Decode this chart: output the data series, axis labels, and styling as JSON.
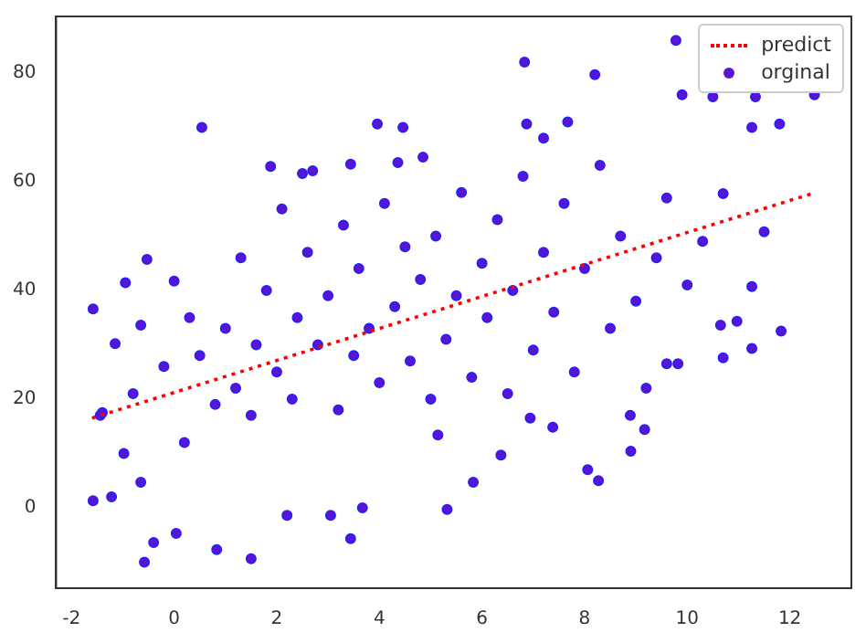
{
  "chart_data": {
    "type": "scatter",
    "xlim": [
      -2.3,
      13.2
    ],
    "ylim": [
      -14.8,
      90.4
    ],
    "xticks": [
      -2,
      0,
      2,
      4,
      6,
      8,
      10,
      12
    ],
    "yticks": [
      0,
      20,
      40,
      60,
      80
    ],
    "grid": false,
    "legend": "top right",
    "series": [
      {
        "name": "predict",
        "type": "line",
        "line_style": "dotted",
        "marker": "none",
        "color": "#ff0000",
        "x": [
          -1.6,
          12.5
        ],
        "values": [
          16.5,
          58
        ]
      },
      {
        "name": "orginal",
        "marker": "circle",
        "color": "#5a14d2",
        "x": [
          0.54,
          3.96,
          4.46,
          4.36,
          4.85,
          -1.58,
          -1.58,
          -1.22,
          -1.44,
          -0.58,
          -0.4,
          0.83,
          1.5,
          3.44,
          0.04,
          2.2,
          3.05,
          3.67,
          1.88,
          2.5,
          2.7,
          3.44,
          -0.53,
          -0.95,
          0,
          -0.98,
          -0.65,
          -1.15,
          -0.65,
          5.32,
          5.83,
          6.83,
          9.78,
          8.2,
          12.48,
          11.8,
          11.26,
          11.33,
          10.5,
          11.26,
          11.26,
          11.83,
          11.5,
          10.97,
          10.7,
          10.65,
          8.9,
          8.06,
          8.27,
          9.17,
          8.89,
          9.82,
          9.6,
          10.7,
          9.9,
          6.87,
          7.2,
          7.67,
          7.38,
          6.37,
          6.94,
          5.14,
          -1.4,
          -0.8,
          -0.2,
          0.2,
          0.3,
          0.5,
          0.8,
          1.0,
          1.2,
          1.3,
          1.5,
          1.6,
          1.8,
          2.0,
          2.1,
          2.3,
          2.4,
          2.6,
          2.8,
          3.0,
          3.2,
          3.3,
          3.5,
          3.6,
          3.8,
          4.0,
          4.1,
          4.3,
          4.5,
          4.6,
          4.8,
          5.0,
          5.1,
          5.3,
          5.5,
          5.6,
          5.8,
          6.0,
          6.1,
          6.3,
          6.5,
          6.6,
          6.8,
          7.0,
          7.2,
          7.4,
          7.6,
          7.8,
          8.0,
          8.3,
          8.5,
          8.7,
          9.0,
          9.2,
          9.4,
          9.6,
          10.0,
          10.3
        ],
        "values": [
          70,
          70.6,
          70,
          63.5,
          64.5,
          36.6,
          1.3,
          2,
          17,
          -10,
          -6.4,
          -7.7,
          -9.4,
          -5.7,
          -4.7,
          -1.4,
          -1.4,
          0,
          62.8,
          61.5,
          62,
          63.2,
          45.7,
          41.4,
          41.7,
          10,
          4.7,
          30.2,
          33.6,
          -0.3,
          4.7,
          82,
          86,
          79.7,
          76,
          70.6,
          70,
          75.6,
          75.6,
          40.7,
          29.3,
          32.5,
          50.8,
          34.3,
          27.6,
          33.6,
          10.4,
          7,
          5,
          14.4,
          17,
          26.5,
          26.5,
          57.8,
          76,
          70.6,
          68,
          71,
          14.8,
          9.7,
          16.5,
          13.4,
          17.5,
          21,
          26,
          12,
          35,
          28,
          19,
          33,
          22,
          46,
          17,
          30,
          40,
          25,
          55,
          20,
          35,
          47,
          30,
          39,
          18,
          52,
          28,
          44,
          33,
          23,
          56,
          37,
          48,
          27,
          42,
          20,
          50,
          31,
          39,
          58,
          24,
          45,
          35,
          53,
          21,
          40,
          61,
          29,
          47,
          36,
          56,
          25,
          44,
          63,
          33,
          50,
          38,
          22,
          46,
          57,
          41,
          49
        ]
      }
    ]
  }
}
